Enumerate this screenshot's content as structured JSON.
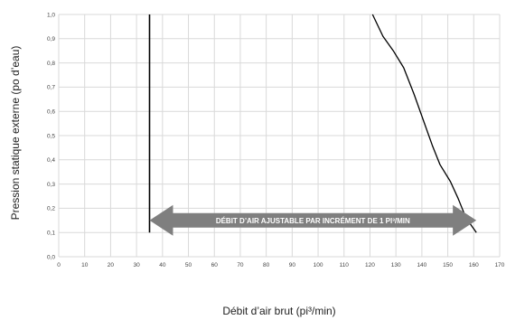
{
  "chart_data": {
    "type": "line",
    "title": "",
    "xlabel": "Débit d’air brut (pi³/min)",
    "ylabel": "Pression statique externe (po d’eau)",
    "xlim": [
      0,
      170
    ],
    "ylim": [
      0,
      1.0
    ],
    "x_ticks": [
      "0",
      "10",
      "20",
      "30",
      "40",
      "50",
      "60",
      "70",
      "80",
      "90",
      "100",
      "110",
      "120",
      "130",
      "140",
      "150",
      "160",
      "170"
    ],
    "y_ticks": [
      "0,0",
      "0,1",
      "0,2",
      "0,3",
      "0,4",
      "0,5",
      "0,6",
      "0,7",
      "0,8",
      "0,9",
      "1,0"
    ],
    "grid": true,
    "series": [
      {
        "values": [
          [
            35,
            0.1
          ],
          [
            35,
            1.0
          ]
        ]
      },
      {
        "values": [
          [
            121,
            1.0
          ],
          [
            125,
            0.91
          ],
          [
            129,
            0.85
          ],
          [
            133,
            0.78
          ],
          [
            137,
            0.67
          ],
          [
            141,
            0.55
          ],
          [
            144,
            0.46
          ],
          [
            147,
            0.38
          ],
          [
            151,
            0.31
          ],
          [
            154,
            0.24
          ],
          [
            157,
            0.16
          ],
          [
            161,
            0.1
          ]
        ]
      }
    ],
    "annotation": {
      "text": "DÉBIT D’AIR AJUSTABLE PAR INCRÉMENT DE 1 PI³/MIN",
      "x_range": [
        35,
        161
      ],
      "y": 0.15,
      "color": "#7f7f7f"
    },
    "colors": {
      "curve": "#000000",
      "grid": "#d9d9d9"
    }
  }
}
